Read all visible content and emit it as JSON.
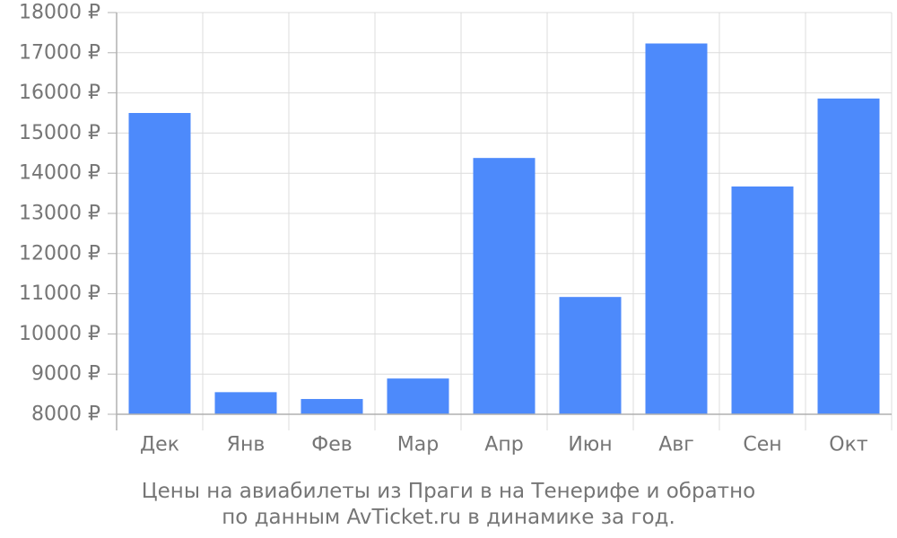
{
  "chart_data": {
    "type": "bar",
    "categories": [
      "Дек",
      "Янв",
      "Фев",
      "Мар",
      "Апр",
      "Июн",
      "Авг",
      "Сен",
      "Окт"
    ],
    "values": [
      15500,
      8550,
      8380,
      8890,
      14380,
      10920,
      17230,
      13670,
      15860
    ],
    "ylim": [
      8000,
      18000
    ],
    "yticks": [
      "8000 ₽",
      "9000 ₽",
      "10000 ₽",
      "11000 ₽",
      "12000 ₽",
      "13000 ₽",
      "14000 ₽",
      "15000 ₽",
      "16000 ₽",
      "17000 ₽",
      "18000 ₽"
    ],
    "grid": true,
    "colors": {
      "bar": "#4d8afb",
      "grid": "#dcdcdc",
      "axis": "#b0b0b0",
      "text": "#757575"
    }
  },
  "caption": {
    "line1": "Цены на авиабилеты из Праги в на Тенерифе и обратно",
    "line2": "по данным AvTicket.ru в динамике за год."
  }
}
